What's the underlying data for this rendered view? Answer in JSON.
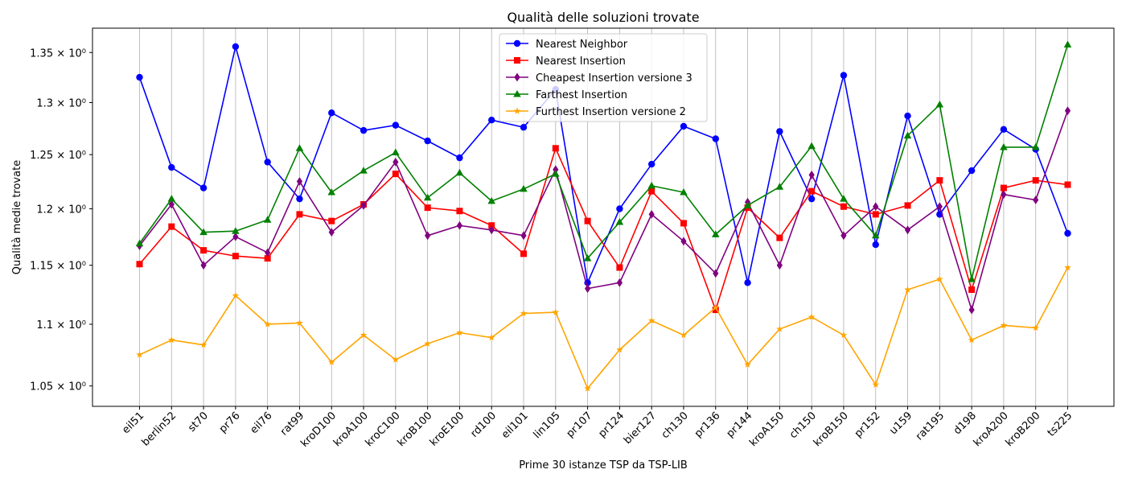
{
  "chart_data": {
    "type": "line",
    "title": "Qualità delle soluzioni trovate",
    "xlabel": "Prime 30 istanze TSP da TSP-LIB",
    "ylabel": "Qualità medie trovate",
    "yscale": "log",
    "ylim": [
      1.034,
      1.375
    ],
    "yticks": [
      {
        "value": 1.05,
        "label": "1.05 × 10⁰"
      },
      {
        "value": 1.1,
        "label": "1.1 × 10⁰"
      },
      {
        "value": 1.15,
        "label": "1.15 × 10⁰"
      },
      {
        "value": 1.2,
        "label": "1.2 × 10⁰"
      },
      {
        "value": 1.25,
        "label": "1.25 × 10⁰"
      },
      {
        "value": 1.3,
        "label": "1.3 × 10⁰"
      },
      {
        "value": 1.35,
        "label": "1.35 × 10⁰"
      }
    ],
    "grid": "vertical",
    "legend_position": "top-center",
    "categories": [
      "eil51",
      "berlin52",
      "st70",
      "pr76",
      "eil76",
      "rat99",
      "kroD100",
      "kroA100",
      "kroC100",
      "kroB100",
      "kroE100",
      "rd100",
      "eil101",
      "lin105",
      "pr107",
      "pr124",
      "bier127",
      "ch130",
      "pr136",
      "pr144",
      "kroA150",
      "ch150",
      "kroB150",
      "pr152",
      "u159",
      "rat195",
      "d198",
      "kroA200",
      "kroB200",
      "ts225"
    ],
    "series": [
      {
        "name": "Nearest Neighbor",
        "color": "#0000ff",
        "marker": "circle",
        "values": [
          1.325,
          1.238,
          1.219,
          1.356,
          1.243,
          1.209,
          1.29,
          1.273,
          1.278,
          1.263,
          1.247,
          1.283,
          1.276,
          1.313,
          1.135,
          1.2,
          1.241,
          1.277,
          1.265,
          1.135,
          1.272,
          1.209,
          1.327,
          1.168,
          1.287,
          1.195,
          1.235,
          1.274,
          1.255,
          1.178
        ]
      },
      {
        "name": "Nearest Insertion",
        "color": "#ff0000",
        "marker": "square",
        "values": [
          1.151,
          1.184,
          1.163,
          1.158,
          1.156,
          1.195,
          1.189,
          1.204,
          1.232,
          1.201,
          1.198,
          1.185,
          1.16,
          1.256,
          1.189,
          1.148,
          1.216,
          1.187,
          1.112,
          1.201,
          1.174,
          1.216,
          1.202,
          1.195,
          1.203,
          1.226,
          1.129,
          1.219,
          1.226,
          1.222
        ]
      },
      {
        "name": "Cheapest Insertion versione 3",
        "color": "#800080",
        "marker": "diamond",
        "values": [
          1.167,
          1.204,
          1.15,
          1.175,
          1.161,
          1.225,
          1.179,
          1.203,
          1.243,
          1.176,
          1.185,
          1.181,
          1.176,
          1.236,
          1.13,
          1.135,
          1.195,
          1.171,
          1.143,
          1.206,
          1.15,
          1.231,
          1.176,
          1.202,
          1.181,
          1.202,
          1.112,
          1.213,
          1.208,
          1.292
        ]
      },
      {
        "name": "Farthest Insertion",
        "color": "#008000",
        "marker": "triangle",
        "values": [
          1.169,
          1.209,
          1.179,
          1.18,
          1.19,
          1.256,
          1.215,
          1.235,
          1.252,
          1.21,
          1.233,
          1.207,
          1.218,
          1.232,
          1.156,
          1.188,
          1.221,
          1.215,
          1.177,
          1.203,
          1.22,
          1.258,
          1.209,
          1.176,
          1.268,
          1.298,
          1.138,
          1.257,
          1.257,
          1.358
        ]
      },
      {
        "name": "Furthest Insertion versione 2",
        "color": "#ffa500",
        "marker": "star",
        "values": [
          1.075,
          1.087,
          1.083,
          1.124,
          1.1,
          1.101,
          1.069,
          1.091,
          1.071,
          1.084,
          1.093,
          1.089,
          1.109,
          1.11,
          1.048,
          1.079,
          1.103,
          1.091,
          1.114,
          1.067,
          1.096,
          1.106,
          1.091,
          1.051,
          1.129,
          1.138,
          1.087,
          1.099,
          1.097,
          1.148
        ]
      }
    ]
  }
}
